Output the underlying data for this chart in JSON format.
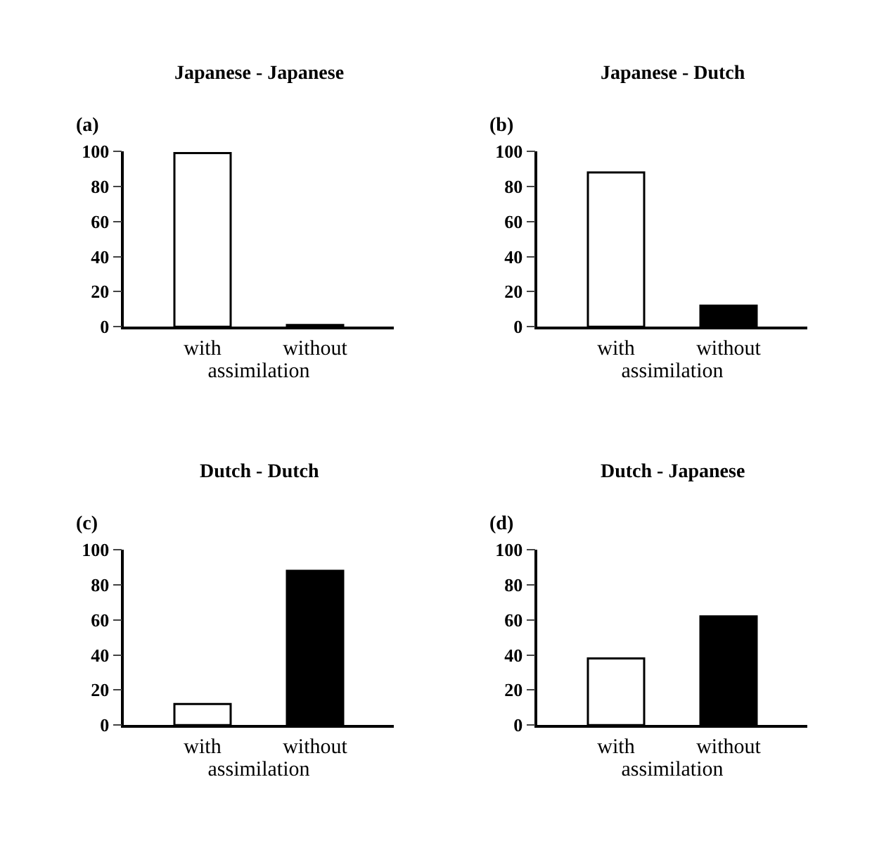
{
  "chart_data": [
    {
      "type": "bar",
      "title": "Japanese - Japanese",
      "annotations": [
        "(a)"
      ],
      "categories": [
        "with",
        "without"
      ],
      "values": [
        99,
        1
      ],
      "colors": [
        "#ffffff",
        "#000000"
      ],
      "xlabel": "assimilation",
      "ylim": [
        0,
        100
      ],
      "yticks": [
        0,
        20,
        40,
        60,
        80,
        100
      ]
    },
    {
      "type": "bar",
      "title": "Japanese - Dutch",
      "annotations": [
        "(b)"
      ],
      "categories": [
        "with",
        "without"
      ],
      "values": [
        88,
        12
      ],
      "colors": [
        "#ffffff",
        "#000000"
      ],
      "xlabel": "assimilation",
      "ylim": [
        0,
        100
      ],
      "yticks": [
        0,
        20,
        40,
        60,
        80,
        100
      ]
    },
    {
      "type": "bar",
      "title": "Dutch - Dutch",
      "annotations": [
        "(c)"
      ],
      "categories": [
        "with",
        "without"
      ],
      "values": [
        12,
        88
      ],
      "colors": [
        "#ffffff",
        "#000000"
      ],
      "xlabel": "assimilation",
      "ylim": [
        0,
        100
      ],
      "yticks": [
        0,
        20,
        40,
        60,
        80,
        100
      ]
    },
    {
      "type": "bar",
      "title": "Dutch - Japanese",
      "annotations": [
        "(d)"
      ],
      "categories": [
        "with",
        "without"
      ],
      "values": [
        38,
        62
      ],
      "colors": [
        "#ffffff",
        "#000000"
      ],
      "xlabel": "assimilation",
      "ylim": [
        0,
        100
      ],
      "yticks": [
        0,
        20,
        40,
        60,
        80,
        100
      ]
    }
  ]
}
